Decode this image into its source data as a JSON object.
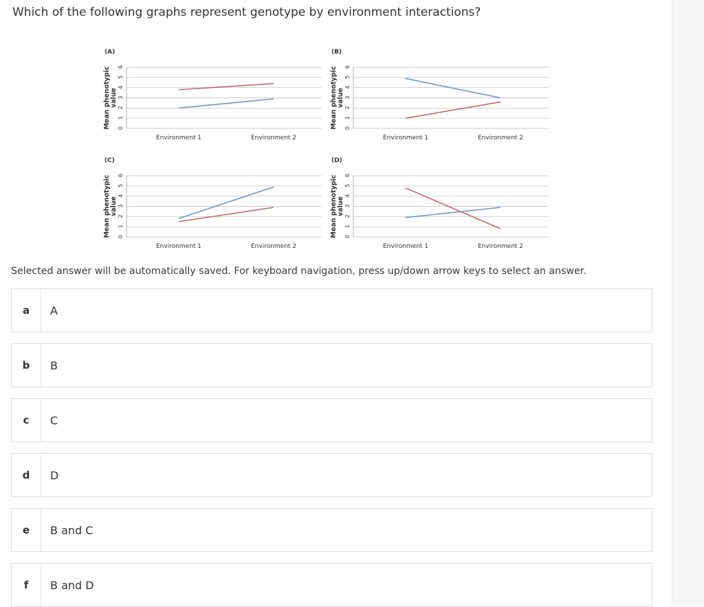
{
  "question": {
    "text": "Which of the following graphs represent genotype by environment interactions?"
  },
  "figure": {
    "ylabel_line1": "Mean phenotypic",
    "ylabel_line2": "value",
    "y_ticks": [
      "0",
      "1",
      "2",
      "3",
      "4",
      "5",
      "6"
    ],
    "colors": {
      "red": "#c06a6a",
      "blue": "#6b98c2",
      "grid": "#b8b8b8"
    }
  },
  "chart_data": [
    {
      "type": "line",
      "title": "(A)",
      "categories": [
        "Environment 1",
        "Environment 2"
      ],
      "series": [
        {
          "color": "#c06a6a",
          "values": [
            3.8,
            4.4
          ]
        },
        {
          "color": "#6b98c2",
          "values": [
            2.0,
            2.9
          ]
        }
      ],
      "ylim": [
        0,
        6
      ]
    },
    {
      "type": "line",
      "title": "(B)",
      "categories": [
        "Environment 1",
        "Environment 2"
      ],
      "series": [
        {
          "color": "#6b98c2",
          "values": [
            4.9,
            3.0
          ]
        },
        {
          "color": "#c06a6a",
          "values": [
            1.0,
            2.6
          ]
        }
      ],
      "ylim": [
        0,
        6
      ]
    },
    {
      "type": "line",
      "title": "(C)",
      "categories": [
        "Environment 1",
        "Environment 2"
      ],
      "series": [
        {
          "color": "#6b98c2",
          "values": [
            1.8,
            4.9
          ]
        },
        {
          "color": "#c06a6a",
          "values": [
            1.5,
            2.9
          ]
        }
      ],
      "ylim": [
        0,
        6
      ]
    },
    {
      "type": "line",
      "title": "(D)",
      "categories": [
        "Environment 1",
        "Environment 2"
      ],
      "series": [
        {
          "color": "#c06a6a",
          "values": [
            4.8,
            0.8
          ]
        },
        {
          "color": "#6b98c2",
          "values": [
            1.9,
            2.9
          ]
        }
      ],
      "ylim": [
        0,
        6
      ]
    }
  ],
  "instructions": "Selected answer will be automatically saved. For keyboard navigation, press up/down arrow keys to select an answer.",
  "options": [
    {
      "letter": "a",
      "text": "A"
    },
    {
      "letter": "b",
      "text": "B"
    },
    {
      "letter": "c",
      "text": "C"
    },
    {
      "letter": "d",
      "text": "D"
    },
    {
      "letter": "e",
      "text": "B and C"
    },
    {
      "letter": "f",
      "text": "B and D"
    }
  ]
}
